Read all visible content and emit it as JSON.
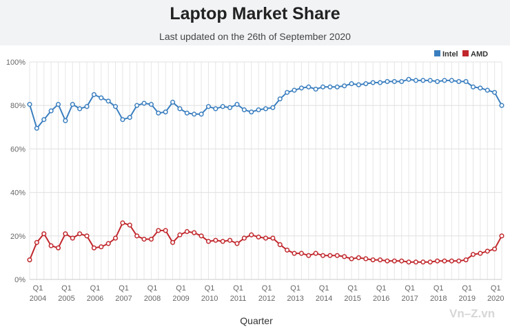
{
  "header": {
    "title": "Laptop Market Share",
    "subtitle": "Last updated on the 26th of September 2020"
  },
  "watermark": "Vn–Z.vn",
  "chart_data": {
    "type": "line",
    "title": "Laptop Market Share",
    "subtitle": "Last updated on the 26th of September 2020",
    "xlabel": "Quarter",
    "ylabel": "",
    "ylim": [
      0,
      100
    ],
    "y_ticks": [
      "0%",
      "20%",
      "40%",
      "60%",
      "80%",
      "100%"
    ],
    "y_tick_values": [
      0,
      20,
      40,
      60,
      80,
      100
    ],
    "grid": true,
    "legend_position": "top-right",
    "x_tick_label": "Q1",
    "years": [
      "2004",
      "2005",
      "2006",
      "2007",
      "2008",
      "2009",
      "2010",
      "2011",
      "2012",
      "2013",
      "2014",
      "2015",
      "2016",
      "2017",
      "2018",
      "2019",
      "2020"
    ],
    "colors": {
      "Intel": "#3a7ebf",
      "AMD": "#c0262b"
    },
    "series": [
      {
        "name": "Intel",
        "values": [
          80.5,
          69.5,
          73.5,
          77.5,
          80.5,
          73,
          80.5,
          78.5,
          79.5,
          85,
          83.5,
          82,
          79.5,
          73.5,
          74.5,
          80,
          81,
          80.5,
          76.5,
          77,
          81.5,
          78.5,
          76.5,
          76,
          76,
          79.5,
          78.5,
          79.5,
          79,
          80.5,
          78,
          77,
          78,
          78.5,
          79,
          83,
          86,
          87,
          88,
          88.5,
          87.5,
          88.5,
          88.5,
          88.5,
          89,
          90,
          89.5,
          90,
          90.5,
          90.5,
          91,
          91,
          91,
          92,
          91.5,
          91.5,
          91.5,
          91,
          91.5,
          91.5,
          91,
          91,
          88.5,
          88,
          87,
          86,
          80
        ]
      },
      {
        "name": "AMD",
        "values": [
          9,
          17,
          21,
          15.5,
          14.5,
          21,
          19,
          21,
          20,
          14.5,
          15,
          16.5,
          19,
          26,
          25,
          20,
          18.5,
          18.5,
          22.5,
          22.5,
          17,
          20.5,
          22,
          21.5,
          20,
          17.5,
          18,
          17.5,
          18,
          16.5,
          19,
          20.5,
          19.5,
          19,
          19,
          16,
          13.5,
          12,
          12,
          11,
          12,
          11,
          11,
          11,
          10.5,
          9.5,
          10,
          9.5,
          9,
          9,
          8.5,
          8.5,
          8.5,
          8,
          8,
          8,
          8,
          8.5,
          8.5,
          8.5,
          8.5,
          9,
          11.5,
          12,
          13,
          14,
          20
        ]
      }
    ]
  }
}
